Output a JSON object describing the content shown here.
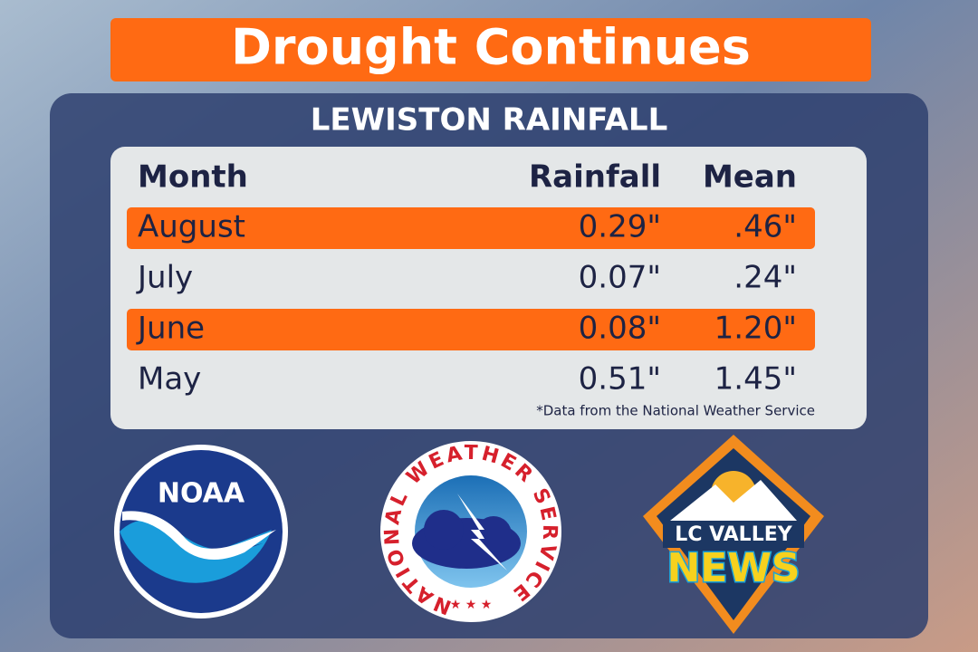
{
  "header": {
    "title": "Drought Continues"
  },
  "table": {
    "title": "LEWISTON RAINFALL",
    "columns": [
      "Month",
      "Rainfall",
      "Mean"
    ],
    "rows": [
      [
        "August",
        "0.29\"",
        ".46\""
      ],
      [
        "July",
        "0.07\"",
        ".24\""
      ],
      [
        "June",
        "0.08\"",
        "1.20\""
      ],
      [
        "May",
        "0.51\"",
        "1.45\""
      ]
    ],
    "highlighted_rows": [
      0,
      2
    ],
    "footnote": "*Data from the National Weather Service"
  },
  "logos": {
    "noaa": "NOAA",
    "nws": "NATIONAL WEATHER SERVICE",
    "lc_valley": "LC VALLEY",
    "news": "NEWS"
  }
}
